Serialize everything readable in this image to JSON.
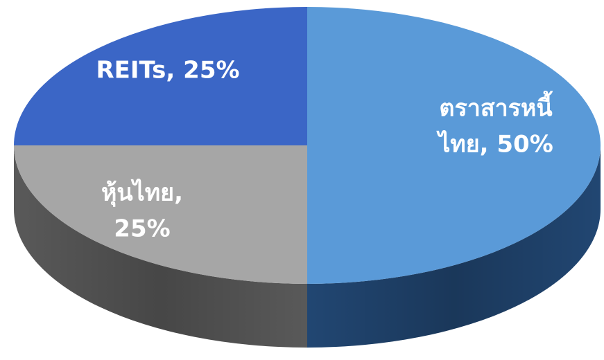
{
  "chart_data": {
    "type": "pie",
    "values": [
      50,
      25,
      25
    ],
    "value_labels": [
      [
        "ตราสารหนี้",
        "ไทย, 50%"
      ],
      [
        "หุ้นไทย,",
        "25%"
      ],
      [
        "REITs, 25%"
      ]
    ],
    "colors": [
      "#5a9ad8",
      "#a6a6a6",
      "#3b66c6"
    ],
    "side_colors": [
      "#234a78",
      "#5e5e5e",
      "#223f80"
    ]
  }
}
